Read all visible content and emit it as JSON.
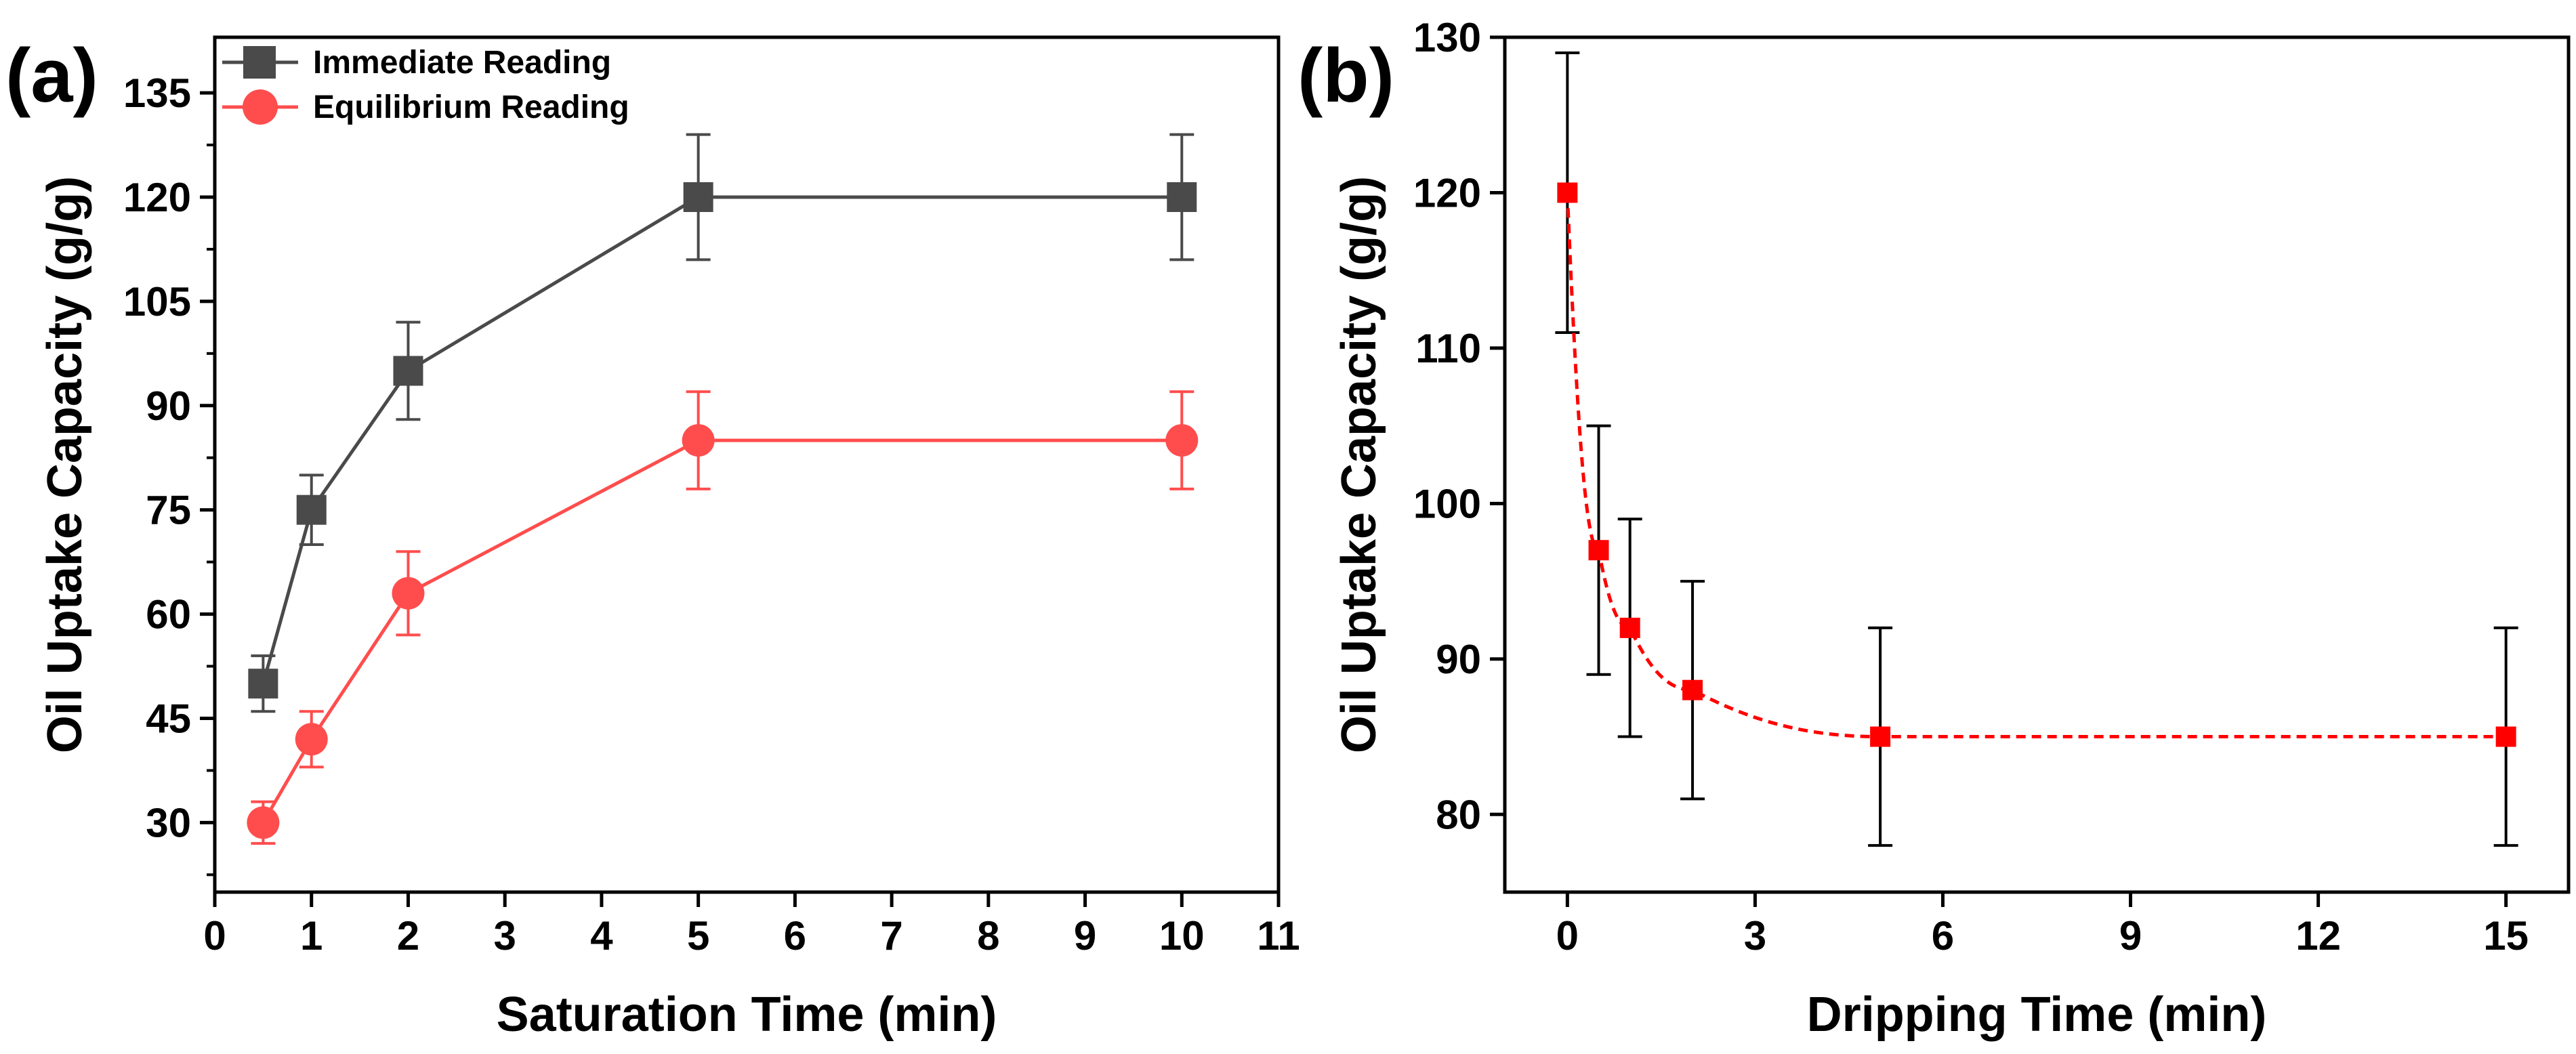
{
  "chart_data": [
    {
      "panel_label": "(a)",
      "type": "line",
      "title": "",
      "xlabel": "Saturation Time (min)",
      "ylabel": "Oil Uptake Capacity (g/g)",
      "xlim": [
        0,
        11
      ],
      "ylim": [
        20,
        143
      ],
      "xticks": [
        0,
        1,
        2,
        3,
        4,
        5,
        6,
        7,
        8,
        9,
        10,
        11
      ],
      "yticks": [
        30,
        45,
        60,
        75,
        90,
        105,
        120,
        135
      ],
      "grid": false,
      "legend_position": "top-left",
      "series": [
        {
          "name": "Immediate Reading",
          "color": "#4a4a4a",
          "marker": "square",
          "x": [
            0.5,
            1,
            2,
            5,
            10
          ],
          "y": [
            50,
            75,
            95,
            120,
            120
          ],
          "err": [
            4,
            5,
            7,
            9,
            9
          ]
        },
        {
          "name": "Equilibrium Reading",
          "color": "#ff4d4d",
          "marker": "circle",
          "x": [
            0.5,
            1,
            2,
            5,
            10
          ],
          "y": [
            30,
            42,
            63,
            85,
            85
          ],
          "err": [
            3,
            4,
            6,
            7,
            7
          ]
        }
      ]
    },
    {
      "panel_label": "(b)",
      "type": "line",
      "title": "",
      "xlabel": "Dripping Time (min)",
      "ylabel": "Oil Uptake Capacity (g/g)",
      "xlim": [
        -1,
        16
      ],
      "ylim": [
        75,
        130
      ],
      "xticks": [
        0,
        3,
        6,
        9,
        12,
        15
      ],
      "yticks": [
        80,
        90,
        100,
        110,
        120,
        130
      ],
      "grid": false,
      "legend_position": "none",
      "series": [
        {
          "name": "",
          "color": "#ff0000",
          "error_color": "#000000",
          "marker": "square",
          "linestyle": "dashed",
          "x": [
            0,
            0.5,
            1,
            2,
            5,
            15
          ],
          "y": [
            120,
            97,
            92,
            88,
            85,
            85
          ],
          "err": [
            9,
            8,
            7,
            7,
            7,
            7
          ]
        }
      ]
    }
  ]
}
